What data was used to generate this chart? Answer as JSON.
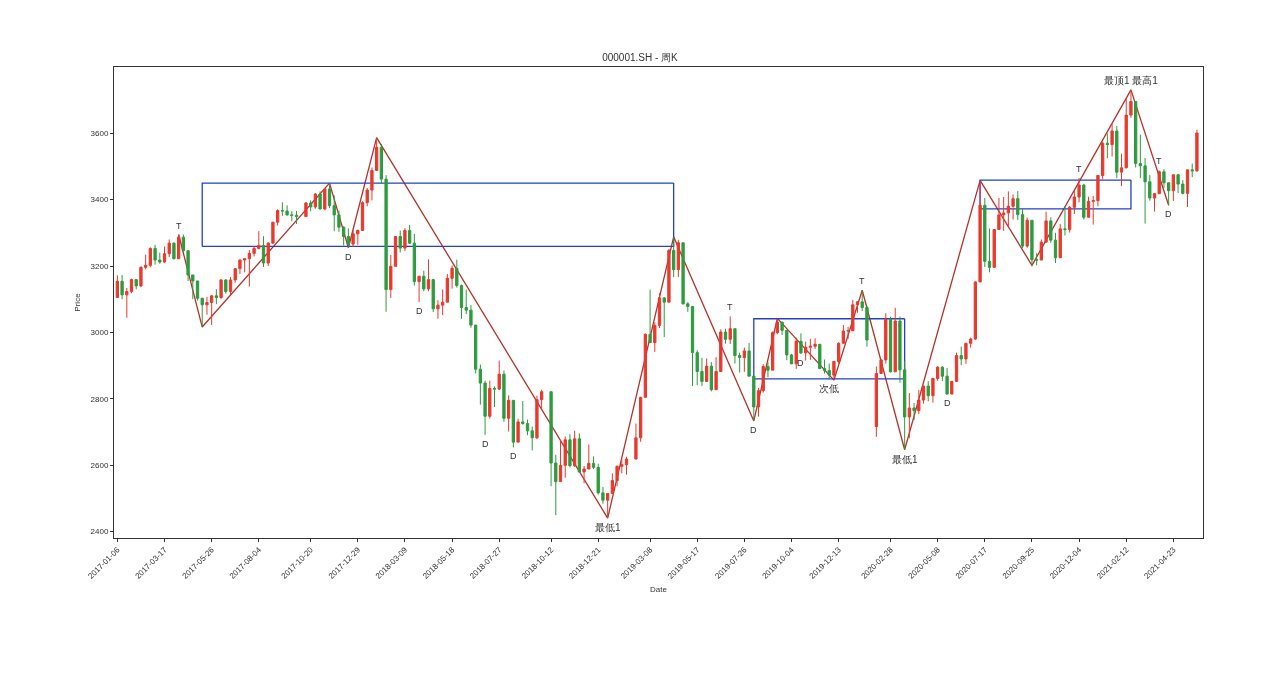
{
  "chart_data": {
    "type": "candlestick",
    "title": "000001.SH - 周K",
    "xlabel": "Date",
    "ylabel": "Price",
    "x": [
      "2017-01-06",
      "2017-01-13",
      "2017-01-20",
      "2017-01-27",
      "2017-02-03",
      "2017-02-10",
      "2017-02-17",
      "2017-02-24",
      "2017-03-03",
      "2017-03-10",
      "2017-03-17",
      "2017-03-24",
      "2017-03-31",
      "2017-04-07",
      "2017-04-14",
      "2017-04-21",
      "2017-04-28",
      "2017-05-05",
      "2017-05-12",
      "2017-05-19",
      "2017-05-26",
      "2017-06-02",
      "2017-06-09",
      "2017-06-16",
      "2017-06-23",
      "2017-06-30",
      "2017-07-07",
      "2017-07-14",
      "2017-07-21",
      "2017-07-28",
      "2017-08-04",
      "2017-08-11",
      "2017-08-18",
      "2017-08-25",
      "2017-09-01",
      "2017-09-08",
      "2017-09-15",
      "2017-09-22",
      "2017-09-29",
      "2017-10-13",
      "2017-10-20",
      "2017-10-27",
      "2017-11-03",
      "2017-11-10",
      "2017-11-17",
      "2017-11-24",
      "2017-12-01",
      "2017-12-08",
      "2017-12-15",
      "2017-12-22",
      "2017-12-29",
      "2018-01-05",
      "2018-01-12",
      "2018-01-19",
      "2018-01-26",
      "2018-02-02",
      "2018-02-09",
      "2018-02-16",
      "2018-02-23",
      "2018-03-02",
      "2018-03-09",
      "2018-03-16",
      "2018-03-23",
      "2018-03-30",
      "2018-04-06",
      "2018-04-13",
      "2018-04-20",
      "2018-04-27",
      "2018-05-04",
      "2018-05-11",
      "2018-05-18",
      "2018-05-25",
      "2018-06-01",
      "2018-06-08",
      "2018-06-15",
      "2018-06-22",
      "2018-06-29",
      "2018-07-06",
      "2018-07-13",
      "2018-07-20",
      "2018-07-27",
      "2018-08-03",
      "2018-08-10",
      "2018-08-17",
      "2018-08-24",
      "2018-08-31",
      "2018-09-07",
      "2018-09-14",
      "2018-09-21",
      "2018-09-28",
      "2018-10-12",
      "2018-10-19",
      "2018-10-26",
      "2018-11-02",
      "2018-11-09",
      "2018-11-16",
      "2018-11-23",
      "2018-11-30",
      "2018-12-07",
      "2018-12-14",
      "2018-12-21",
      "2018-12-28",
      "2019-01-04",
      "2019-01-11",
      "2019-01-18",
      "2019-01-25",
      "2019-02-01",
      "2019-02-15",
      "2019-02-22",
      "2019-03-01",
      "2019-03-08",
      "2019-03-15",
      "2019-03-22",
      "2019-03-29",
      "2019-04-05",
      "2019-04-12",
      "2019-04-19",
      "2019-04-26",
      "2019-05-03",
      "2019-05-10",
      "2019-05-17",
      "2019-05-24",
      "2019-05-31",
      "2019-06-07",
      "2019-06-14",
      "2019-06-21",
      "2019-06-28",
      "2019-07-05",
      "2019-07-12",
      "2019-07-19",
      "2019-07-26",
      "2019-08-02",
      "2019-08-09",
      "2019-08-16",
      "2019-08-23",
      "2019-08-30",
      "2019-09-06",
      "2019-09-13",
      "2019-09-20",
      "2019-09-27",
      "2019-10-04",
      "2019-10-11",
      "2019-10-18",
      "2019-10-25",
      "2019-11-01",
      "2019-11-08",
      "2019-11-15",
      "2019-11-22",
      "2019-11-29",
      "2019-12-06",
      "2019-12-13",
      "2019-12-20",
      "2019-12-27",
      "2020-01-03",
      "2020-01-10",
      "2020-01-17",
      "2020-01-24",
      "2020-02-07",
      "2020-02-14",
      "2020-02-21",
      "2020-02-28",
      "2020-03-06",
      "2020-03-13",
      "2020-03-20",
      "2020-03-27",
      "2020-04-03",
      "2020-04-10",
      "2020-04-17",
      "2020-04-24",
      "2020-05-01",
      "2020-05-08",
      "2020-05-15",
      "2020-05-22",
      "2020-05-29",
      "2020-06-05",
      "2020-06-12",
      "2020-06-19",
      "2020-06-26",
      "2020-07-03",
      "2020-07-10",
      "2020-07-17",
      "2020-07-24",
      "2020-07-31",
      "2020-08-07",
      "2020-08-14",
      "2020-08-21",
      "2020-08-28",
      "2020-09-04",
      "2020-09-11",
      "2020-09-18",
      "2020-09-25",
      "2020-10-02",
      "2020-10-09",
      "2020-10-16",
      "2020-10-23",
      "2020-10-30",
      "2020-11-06",
      "2020-11-13",
      "2020-11-20",
      "2020-11-27",
      "2020-12-04",
      "2020-12-11",
      "2020-12-18",
      "2020-12-25",
      "2021-01-01",
      "2021-01-08",
      "2021-01-15",
      "2021-01-22",
      "2021-01-29",
      "2021-02-05",
      "2021-02-12",
      "2021-02-19",
      "2021-02-26",
      "2021-03-05",
      "2021-03-12",
      "2021-03-19",
      "2021-03-26",
      "2021-04-02",
      "2021-04-09",
      "2021-04-16",
      "2021-04-23",
      "2021-04-30",
      "2021-05-07",
      "2021-05-14",
      "2021-05-21",
      "2021-05-28"
    ],
    "ohlc": [
      [
        3105,
        3172,
        3105,
        3154
      ],
      [
        3154,
        3173,
        3100,
        3113
      ],
      [
        3113,
        3134,
        3044,
        3123
      ],
      [
        3123,
        3162,
        3118,
        3159
      ],
      [
        3159,
        3159,
        3130,
        3140
      ],
      [
        3140,
        3199,
        3136,
        3196
      ],
      [
        3196,
        3234,
        3190,
        3202
      ],
      [
        3202,
        3256,
        3196,
        3253
      ],
      [
        3253,
        3264,
        3204,
        3218
      ],
      [
        3218,
        3240,
        3207,
        3212
      ],
      [
        3212,
        3259,
        3210,
        3237
      ],
      [
        3237,
        3280,
        3227,
        3269
      ],
      [
        3269,
        3271,
        3220,
        3222
      ],
      [
        3222,
        3295,
        3222,
        3287
      ],
      [
        3287,
        3295,
        3243,
        3246
      ],
      [
        3246,
        3246,
        3155,
        3173
      ],
      [
        3173,
        3173,
        3100,
        3155
      ],
      [
        3155,
        3155,
        3096,
        3103
      ],
      [
        3103,
        3104,
        3016,
        3083
      ],
      [
        3083,
        3107,
        3053,
        3090
      ],
      [
        3090,
        3113,
        3022,
        3110
      ],
      [
        3110,
        3130,
        3085,
        3105
      ],
      [
        3105,
        3160,
        3100,
        3158
      ],
      [
        3158,
        3160,
        3117,
        3123
      ],
      [
        3123,
        3167,
        3115,
        3158
      ],
      [
        3158,
        3193,
        3150,
        3192
      ],
      [
        3192,
        3220,
        3176,
        3218
      ],
      [
        3218,
        3222,
        3181,
        3222
      ],
      [
        3222,
        3248,
        3138,
        3238
      ],
      [
        3238,
        3260,
        3229,
        3253
      ],
      [
        3253,
        3305,
        3250,
        3262
      ],
      [
        3262,
        3290,
        3197,
        3209
      ],
      [
        3209,
        3272,
        3200,
        3269
      ],
      [
        3269,
        3333,
        3268,
        3332
      ],
      [
        3332,
        3371,
        3322,
        3367
      ],
      [
        3367,
        3392,
        3351,
        3366
      ],
      [
        3366,
        3383,
        3352,
        3354
      ],
      [
        3354,
        3365,
        3335,
        3353
      ],
      [
        3353,
        3366,
        3327,
        3349
      ],
      [
        3349,
        3393,
        3349,
        3390
      ],
      [
        3390,
        3398,
        3365,
        3378
      ],
      [
        3378,
        3420,
        3373,
        3417
      ],
      [
        3417,
        3425,
        3371,
        3372
      ],
      [
        3372,
        3435,
        3368,
        3432
      ],
      [
        3432,
        3450,
        3375,
        3382
      ],
      [
        3382,
        3413,
        3305,
        3354
      ],
      [
        3354,
        3367,
        3303,
        3317
      ],
      [
        3317,
        3320,
        3262,
        3289
      ],
      [
        3289,
        3313,
        3255,
        3266
      ],
      [
        3266,
        3307,
        3258,
        3297
      ],
      [
        3297,
        3310,
        3264,
        3307
      ],
      [
        3307,
        3395,
        3307,
        3391
      ],
      [
        3391,
        3435,
        3380,
        3429
      ],
      [
        3429,
        3497,
        3398,
        3488
      ],
      [
        3488,
        3587,
        3488,
        3558
      ],
      [
        3558,
        3568,
        3448,
        3462
      ],
      [
        3462,
        3474,
        3062,
        3129
      ],
      [
        3129,
        3233,
        3104,
        3199
      ],
      [
        3199,
        3290,
        3199,
        3289
      ],
      [
        3289,
        3307,
        3241,
        3254
      ],
      [
        3254,
        3314,
        3245,
        3307
      ],
      [
        3307,
        3324,
        3267,
        3269
      ],
      [
        3269,
        3297,
        3141,
        3153
      ],
      [
        3153,
        3170,
        3091,
        3169
      ],
      [
        3169,
        3186,
        3124,
        3131
      ],
      [
        3131,
        3220,
        3124,
        3159
      ],
      [
        3159,
        3159,
        3061,
        3071
      ],
      [
        3071,
        3097,
        3041,
        3082
      ],
      [
        3082,
        3129,
        3052,
        3091
      ],
      [
        3091,
        3176,
        3091,
        3163
      ],
      [
        3163,
        3202,
        3132,
        3193
      ],
      [
        3193,
        3219,
        3135,
        3141
      ],
      [
        3141,
        3144,
        3041,
        3075
      ],
      [
        3075,
        3129,
        3055,
        3067
      ],
      [
        3067,
        3082,
        3014,
        3022
      ],
      [
        3022,
        3022,
        2876,
        2889
      ],
      [
        2889,
        2903,
        2782,
        2847
      ],
      [
        2847,
        2854,
        2691,
        2747
      ],
      [
        2747,
        2854,
        2740,
        2831
      ],
      [
        2831,
        2837,
        2775,
        2829
      ],
      [
        2829,
        2915,
        2826,
        2874
      ],
      [
        2874,
        2885,
        2730,
        2741
      ],
      [
        2741,
        2810,
        2701,
        2795
      ],
      [
        2795,
        2795,
        2653,
        2669
      ],
      [
        2669,
        2740,
        2669,
        2730
      ],
      [
        2730,
        2793,
        2722,
        2725
      ],
      [
        2725,
        2737,
        2690,
        2703
      ],
      [
        2703,
        2716,
        2644,
        2682
      ],
      [
        2682,
        2809,
        2678,
        2797
      ],
      [
        2797,
        2827,
        2771,
        2821
      ],
      [
        2821,
        2821,
        2536,
        2606
      ],
      [
        2606,
        2631,
        2449,
        2550
      ],
      [
        2550,
        2676,
        2550,
        2599
      ],
      [
        2599,
        2686,
        2562,
        2676
      ],
      [
        2676,
        2693,
        2593,
        2598
      ],
      [
        2598,
        2703,
        2594,
        2679
      ],
      [
        2679,
        2695,
        2577,
        2579
      ],
      [
        2579,
        2597,
        2545,
        2588
      ],
      [
        2588,
        2662,
        2588,
        2605
      ],
      [
        2605,
        2626,
        2588,
        2593
      ],
      [
        2593,
        2604,
        2511,
        2516
      ],
      [
        2516,
        2534,
        2483,
        2494
      ],
      [
        2494,
        2515,
        2440,
        2514
      ],
      [
        2514,
        2575,
        2514,
        2553
      ],
      [
        2553,
        2599,
        2536,
        2596
      ],
      [
        2596,
        2618,
        2575,
        2601
      ],
      [
        2601,
        2625,
        2571,
        2618
      ],
      [
        2618,
        2725,
        2618,
        2682
      ],
      [
        2682,
        2806,
        2670,
        2804
      ],
      [
        2804,
        2997,
        2804,
        2994
      ],
      [
        2994,
        3129,
        2969,
        2969
      ],
      [
        2969,
        3030,
        2941,
        3021
      ],
      [
        3021,
        3118,
        3013,
        3104
      ],
      [
        3104,
        3105,
        2986,
        3091
      ],
      [
        3091,
        3252,
        3091,
        3247
      ],
      [
        3247,
        3288,
        3166,
        3189
      ],
      [
        3189,
        3279,
        3167,
        3270
      ],
      [
        3270,
        3270,
        3084,
        3086
      ],
      [
        3086,
        3091,
        3062,
        3078
      ],
      [
        3078,
        3078,
        2838,
        2939
      ],
      [
        2939,
        2946,
        2841,
        2882
      ],
      [
        2882,
        2923,
        2838,
        2852
      ],
      [
        2852,
        2921,
        2851,
        2898
      ],
      [
        2898,
        2910,
        2822,
        2827
      ],
      [
        2827,
        2925,
        2827,
        2882
      ],
      [
        2882,
        3009,
        2882,
        3001
      ],
      [
        3001,
        3011,
        2966,
        2979
      ],
      [
        2979,
        3048,
        2965,
        3011
      ],
      [
        3011,
        3011,
        2906,
        2930
      ],
      [
        2930,
        2939,
        2879,
        2924
      ],
      [
        2924,
        2954,
        2881,
        2944
      ],
      [
        2944,
        2968,
        2867,
        2868
      ],
      [
        2868,
        2868,
        2733,
        2775
      ],
      [
        2775,
        2832,
        2746,
        2824
      ],
      [
        2824,
        2904,
        2818,
        2897
      ],
      [
        2897,
        2910,
        2865,
        2886
      ],
      [
        2886,
        3003,
        2886,
        2999
      ],
      [
        2999,
        3042,
        2994,
        3031
      ],
      [
        3031,
        3031,
        2992,
        3006
      ],
      [
        3006,
        3006,
        2916,
        2932
      ],
      [
        2932,
        2935,
        2905,
        2905
      ],
      [
        2905,
        2984,
        2890,
        2973
      ],
      [
        2973,
        2997,
        2935,
        2938
      ],
      [
        2938,
        2972,
        2915,
        2955
      ],
      [
        2955,
        2980,
        2917,
        2958
      ],
      [
        2958,
        2982,
        2950,
        2964
      ],
      [
        2964,
        2964,
        2889,
        2891
      ],
      [
        2891,
        2918,
        2876,
        2885
      ],
      [
        2885,
        2906,
        2858,
        2871
      ],
      [
        2871,
        2912,
        2856,
        2912
      ],
      [
        2912,
        2970,
        2906,
        2967
      ],
      [
        2967,
        3022,
        2967,
        3004
      ],
      [
        3004,
        3017,
        2980,
        3005
      ],
      [
        3005,
        3098,
        3005,
        3083
      ],
      [
        3083,
        3094,
        3059,
        3092
      ],
      [
        3092,
        3127,
        3064,
        3075
      ],
      [
        3075,
        3080,
        2957,
        2977
      ],
      [
        2716,
        2897,
        2685,
        2876
      ],
      [
        2876,
        2918,
        2875,
        2917
      ],
      [
        2917,
        3058,
        2906,
        3040
      ],
      [
        3040,
        3047,
        2879,
        2881
      ],
      [
        2881,
        3074,
        2881,
        3034
      ],
      [
        3034,
        3048,
        2848,
        2887
      ],
      [
        2887,
        2914,
        2646,
        2745
      ],
      [
        2745,
        2817,
        2681,
        2772
      ],
      [
        2772,
        2787,
        2735,
        2764
      ],
      [
        2764,
        2826,
        2754,
        2796
      ],
      [
        2796,
        2839,
        2785,
        2838
      ],
      [
        2838,
        2853,
        2792,
        2809
      ],
      [
        2809,
        2863,
        2788,
        2861
      ],
      [
        2861,
        2898,
        2854,
        2895
      ],
      [
        2895,
        2898,
        2853,
        2868
      ],
      [
        2868,
        2893,
        2813,
        2814
      ],
      [
        2814,
        2854,
        2814,
        2852
      ],
      [
        2852,
        2939,
        2852,
        2930
      ],
      [
        2930,
        2957,
        2901,
        2920
      ],
      [
        2920,
        2968,
        2905,
        2967
      ],
      [
        2967,
        2984,
        2954,
        2980
      ],
      [
        2980,
        3153,
        2977,
        3152
      ],
      [
        3152,
        3458,
        3152,
        3383
      ],
      [
        3383,
        3405,
        3197,
        3214
      ],
      [
        3214,
        3313,
        3181,
        3196
      ],
      [
        3196,
        3311,
        3196,
        3310
      ],
      [
        3310,
        3405,
        3310,
        3354
      ],
      [
        3354,
        3408,
        3306,
        3360
      ],
      [
        3360,
        3425,
        3316,
        3380
      ],
      [
        3380,
        3416,
        3340,
        3403
      ],
      [
        3403,
        3426,
        3339,
        3355
      ],
      [
        3355,
        3375,
        3254,
        3260
      ],
      [
        3260,
        3346,
        3255,
        3338
      ],
      [
        3338,
        3338,
        3202,
        3219
      ],
      [
        3219,
        3239,
        3202,
        3218
      ],
      [
        3218,
        3280,
        3218,
        3272
      ],
      [
        3272,
        3364,
        3271,
        3336
      ],
      [
        3336,
        3347,
        3270,
        3278
      ],
      [
        3278,
        3300,
        3209,
        3225
      ],
      [
        3225,
        3327,
        3225,
        3312
      ],
      [
        3312,
        3381,
        3292,
        3310
      ],
      [
        3310,
        3381,
        3301,
        3377
      ],
      [
        3377,
        3427,
        3357,
        3408
      ],
      [
        3408,
        3465,
        3392,
        3444
      ],
      [
        3444,
        3448,
        3340,
        3347
      ],
      [
        3347,
        3409,
        3347,
        3395
      ],
      [
        3395,
        3411,
        3325,
        3397
      ],
      [
        3397,
        3474,
        3380,
        3473
      ],
      [
        3473,
        3574,
        3461,
        3570
      ],
      [
        3570,
        3600,
        3525,
        3566
      ],
      [
        3566,
        3628,
        3530,
        3607
      ],
      [
        3607,
        3622,
        3465,
        3483
      ],
      [
        3483,
        3539,
        3441,
        3496
      ],
      [
        3496,
        3703,
        3495,
        3655
      ],
      [
        3655,
        3731,
        3647,
        3696
      ],
      [
        3696,
        3696,
        3497,
        3509
      ],
      [
        3509,
        3596,
        3465,
        3502
      ],
      [
        3502,
        3526,
        3328,
        3454
      ],
      [
        3454,
        3474,
        3397,
        3405
      ],
      [
        3405,
        3420,
        3364,
        3418
      ],
      [
        3418,
        3488,
        3418,
        3484
      ],
      [
        3484,
        3492,
        3435,
        3451
      ],
      [
        3451,
        3451,
        3383,
        3427
      ],
      [
        3427,
        3476,
        3396,
        3475
      ],
      [
        3475,
        3478,
        3420,
        3447
      ],
      [
        3447,
        3459,
        3416,
        3419
      ],
      [
        3419,
        3490,
        3378,
        3490
      ],
      [
        3490,
        3509,
        3468,
        3487
      ],
      [
        3487,
        3611,
        3484,
        3601
      ]
    ],
    "colors": [
      "#e8392e",
      "#2e9b3f",
      "#e8392e",
      "#e8392e",
      "#2e9b3f",
      "#e8392e",
      "#e8392e",
      "#e8392e",
      "#2e9b3f",
      "#2e9b3f",
      "#e8392e",
      "#e8392e",
      "#2e9b3f",
      "#e8392e",
      "#2e9b3f",
      "#2e9b3f",
      "#2e9b3f",
      "#2e9b3f",
      "#2e9b3f",
      "#e8392e",
      "#e8392e",
      "#2e9b3f",
      "#e8392e",
      "#2e9b3f",
      "#e8392e",
      "#e8392e",
      "#e8392e",
      "#e8392e",
      "#e8392e",
      "#e8392e",
      "#e8392e",
      "#2e9b3f",
      "#e8392e",
      "#e8392e",
      "#e8392e",
      "#2e9b3f",
      "#2e9b3f",
      "#2e9b3f",
      "#2e9b3f",
      "#e8392e",
      "#2e9b3f",
      "#e8392e",
      "#2e9b3f",
      "#e8392e",
      "#2e9b3f",
      "#2e9b3f",
      "#2e9b3f",
      "#2e9b3f",
      "#2e9b3f",
      "#e8392e",
      "#e8392e",
      "#e8392e",
      "#e8392e",
      "#e8392e",
      "#e8392e",
      "#2e9b3f",
      "#2e9b3f",
      "#e8392e",
      "#e8392e",
      "#2e9b3f",
      "#e8392e",
      "#2e9b3f",
      "#2e9b3f",
      "#e8392e",
      "#2e9b3f",
      "#e8392e",
      "#2e9b3f",
      "#e8392e",
      "#e8392e",
      "#e8392e",
      "#e8392e",
      "#2e9b3f",
      "#2e9b3f",
      "#2e9b3f",
      "#2e9b3f",
      "#2e9b3f",
      "#2e9b3f",
      "#2e9b3f",
      "#e8392e",
      "#2e9b3f",
      "#e8392e",
      "#2e9b3f",
      "#e8392e",
      "#2e9b3f",
      "#e8392e",
      "#2e9b3f",
      "#2e9b3f",
      "#2e9b3f",
      "#e8392e",
      "#e8392e",
      "#2e9b3f",
      "#2e9b3f",
      "#e8392e",
      "#e8392e",
      "#2e9b3f",
      "#e8392e",
      "#2e9b3f",
      "#e8392e",
      "#e8392e",
      "#2e9b3f",
      "#2e9b3f",
      "#2e9b3f",
      "#e8392e",
      "#e8392e",
      "#e8392e",
      "#e8392e",
      "#e8392e",
      "#e8392e",
      "#e8392e",
      "#e8392e",
      "#2e9b3f",
      "#e8392e",
      "#e8392e",
      "#2e9b3f",
      "#e8392e",
      "#2e9b3f",
      "#e8392e",
      "#2e9b3f",
      "#2e9b3f",
      "#2e9b3f",
      "#2e9b3f",
      "#2e9b3f",
      "#e8392e",
      "#2e9b3f",
      "#e8392e",
      "#e8392e",
      "#2e9b3f",
      "#e8392e",
      "#2e9b3f",
      "#2e9b3f",
      "#e8392e",
      "#2e9b3f",
      "#2e9b3f",
      "#e8392e",
      "#e8392e",
      "#2e9b3f",
      "#e8392e",
      "#e8392e",
      "#2e9b3f",
      "#2e9b3f",
      "#2e9b3f",
      "#e8392e",
      "#2e9b3f",
      "#e8392e",
      "#e8392e",
      "#e8392e",
      "#2e9b3f",
      "#2e9b3f",
      "#2e9b3f",
      "#e8392e",
      "#e8392e",
      "#e8392e",
      "#e8392e",
      "#e8392e",
      "#e8392e",
      "#2e9b3f",
      "#2e9b3f",
      "#e8392e",
      "#e8392e",
      "#e8392e",
      "#2e9b3f",
      "#e8392e",
      "#2e9b3f",
      "#2e9b3f",
      "#e8392e",
      "#2e9b3f",
      "#e8392e",
      "#e8392e",
      "#2e9b3f",
      "#e8392e",
      "#e8392e",
      "#2e9b3f",
      "#2e9b3f",
      "#e8392e",
      "#e8392e",
      "#2e9b3f",
      "#e8392e",
      "#e8392e",
      "#e8392e",
      "#e8392e",
      "#2e9b3f",
      "#2e9b3f",
      "#e8392e",
      "#e8392e",
      "#e8392e",
      "#e8392e",
      "#e8392e",
      "#2e9b3f",
      "#2e9b3f",
      "#e8392e",
      "#2e9b3f",
      "#2e9b3f",
      "#e8392e",
      "#e8392e",
      "#2e9b3f",
      "#2e9b3f",
      "#e8392e",
      "#2e9b3f",
      "#e8392e",
      "#e8392e",
      "#e8392e",
      "#2e9b3f",
      "#e8392e",
      "#e8392e",
      "#e8392e",
      "#e8392e",
      "#2e9b3f",
      "#e8392e",
      "#2e9b3f",
      "#e8392e",
      "#e8392e",
      "#e8392e",
      "#2e9b3f",
      "#2e9b3f",
      "#2e9b3f",
      "#2e9b3f",
      "#e8392e",
      "#e8392e",
      "#2e9b3f",
      "#2e9b3f",
      "#e8392e",
      "#2e9b3f",
      "#2e9b3f",
      "#e8392e",
      "#2e9b3f",
      "#e8392e"
    ],
    "series": [
      {
        "type": "line",
        "color": "#b5322a",
        "x": [
          "2017-04-07",
          "2017-05-12",
          "2017-11-17",
          "2017-12-15",
          "2018-01-26",
          "2019-01-04",
          "2019-04-12",
          "2019-08-09",
          "2019-09-13",
          "2019-12-06",
          "2020-01-17",
          "2020-03-20",
          "2020-07-10",
          "2020-09-25",
          "2021-02-19",
          "2021-04-16"
        ],
        "values": [
          3295,
          3016,
          3450,
          3255,
          3587,
          2440,
          3288,
          2733,
          3042,
          2856,
          3127,
          2646,
          3458,
          3202,
          3731,
          3383
        ]
      },
      {
        "type": "line",
        "color": "#2440c8",
        "x": [
          "2017-05-12",
          "2017-05-12",
          "2019-04-12"
        ],
        "values": [
          3259,
          3450,
          3450
        ]
      },
      {
        "type": "line",
        "color": "#2440c8",
        "x": [
          "2017-05-12",
          "2019-04-12",
          "2019-04-12"
        ],
        "values": [
          3259,
          3259,
          3450
        ]
      },
      {
        "type": "line",
        "color": "#2440c8",
        "x": [
          "2019-08-09",
          "2019-08-09",
          "2020-03-20"
        ],
        "values": [
          2860,
          3041,
          3041
        ]
      },
      {
        "type": "line",
        "color": "#2440c8",
        "x": [
          "2019-08-09",
          "2020-03-20",
          "2020-03-20"
        ],
        "values": [
          2860,
          2860,
          3041
        ]
      },
      {
        "type": "line",
        "color": "#2440c8",
        "x": [
          "2020-07-10",
          "2020-07-10",
          "2021-02-19"
        ],
        "values": [
          3372,
          3459,
          3459
        ]
      },
      {
        "type": "line",
        "color": "#2440c8",
        "x": [
          "2020-07-10",
          "2021-02-19",
          "2021-02-19"
        ],
        "values": [
          3372,
          3372,
          3459
        ]
      }
    ],
    "annotations": [
      {
        "text": "T",
        "x": "2017-04-07",
        "y": 3295
      },
      {
        "text": "D",
        "x": "2017-12-15",
        "y": 3255
      },
      {
        "text": "D",
        "x": "2018-03-30",
        "y": 3091
      },
      {
        "text": "D",
        "x": "2018-07-06",
        "y": 2691
      },
      {
        "text": "D",
        "x": "2018-08-17",
        "y": 2653
      },
      {
        "text": "最低1",
        "x": "2019-01-04",
        "y": 2440
      },
      {
        "text": "T",
        "x": "2019-07-05",
        "y": 3048
      },
      {
        "text": "D",
        "x": "2019-08-09",
        "y": 2733
      },
      {
        "text": "D",
        "x": "2019-10-18",
        "y": 2935
      },
      {
        "text": "次低",
        "x": "2019-11-29",
        "y": 2858
      },
      {
        "text": "T",
        "x": "2020-01-17",
        "y": 3127
      },
      {
        "text": "最低1",
        "x": "2020-03-20",
        "y": 2646
      },
      {
        "text": "D",
        "x": "2020-05-22",
        "y": 2813
      },
      {
        "text": "T",
        "x": "2020-12-04",
        "y": 3465
      },
      {
        "text": "最顶1 最高1",
        "x": "2021-02-19",
        "y": 3731
      },
      {
        "text": "T",
        "x": "2021-04-02",
        "y": 3488
      },
      {
        "text": "D",
        "x": "2021-04-16",
        "y": 3383
      }
    ],
    "xlim": [
      "2017-01-01",
      "2021-06-06"
    ],
    "ylim": [
      2380,
      3800
    ],
    "xticks": [
      "2017-01-06",
      "2017-03-17",
      "2017-05-26",
      "2017-08-04",
      "2017-10-20",
      "2017-12-29",
      "2018-03-09",
      "2018-05-18",
      "2018-07-27",
      "2018-10-12",
      "2018-12-21",
      "2019-03-08",
      "2019-05-17",
      "2019-07-26",
      "2019-10-04",
      "2019-12-13",
      "2020-02-28",
      "2020-05-08",
      "2020-07-17",
      "2020-09-25",
      "2020-12-04",
      "2021-02-12",
      "2021-04-23"
    ],
    "yticks": [
      2400,
      2600,
      2800,
      3000,
      3200,
      3400,
      3600
    ]
  }
}
